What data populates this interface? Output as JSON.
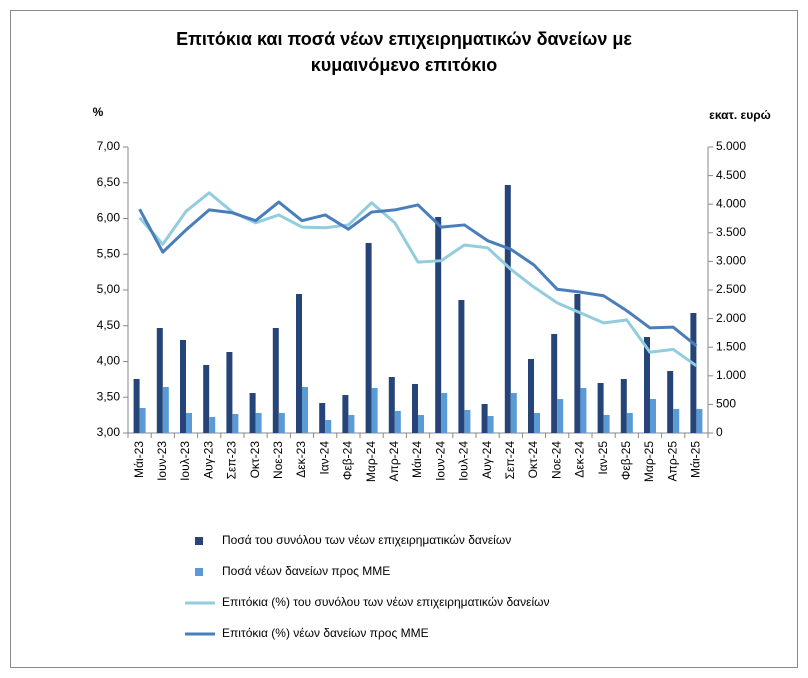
{
  "chart_data": {
    "type": "bar",
    "title": [
      "Επιτόκια και ποσά νέων επιχειρηματικών δανείων με",
      "κυμαινόμενο επιτόκιο"
    ],
    "y_label": "%",
    "y2_label": "εκατ. ευρώ",
    "categories": [
      "Μάι-23",
      "Ιουν-23",
      "Ιουλ-23",
      "Αυγ-23",
      "Σεπ-23",
      "Οκτ-23",
      "Νοε-23",
      "Δεκ-23",
      "Ιαν-24",
      "Φεβ-24",
      "Μαρ-24",
      "Απρ-24",
      "Μάι-24",
      "Ιουν-24",
      "Ιουλ-24",
      "Αυγ-24",
      "Σεπ-24",
      "Οκτ-24",
      "Νοε-24",
      "Δεκ-24",
      "Ιαν-25",
      "Φεβ-25",
      "Μαρ-25",
      "Απρ-25",
      "Μάι-25"
    ],
    "series": [
      {
        "name": "Ποσά του συνόλου των νέων επιχειρηματικών δανείων",
        "type": "bar",
        "axis": "y2",
        "color": "#264478",
        "values": [
          944,
          1836,
          1626,
          1189,
          1416,
          699,
          1836,
          2430,
          524,
          664,
          3322,
          979,
          857,
          3776,
          2325,
          507,
          4336,
          1294,
          1731,
          2430,
          874,
          944,
          1678,
          1084,
          2098
        ]
      },
      {
        "name": "Ποσά νέων δανείων προς ΜΜΕ",
        "type": "bar",
        "axis": "y2",
        "color": "#5b9bd5",
        "values": [
          437,
          804,
          350,
          280,
          332,
          350,
          350,
          804,
          227,
          315,
          787,
          385,
          315,
          699,
          402,
          297,
          699,
          350,
          594,
          787,
          315,
          350,
          594,
          420,
          420
        ]
      },
      {
        "name": "Επιτόκια (%) του συνόλου των νέων επιχειρηματικών δανείων",
        "type": "line",
        "color": "#93cddd",
        "values": [
          6.01,
          5.64,
          6.1,
          6.36,
          6.09,
          5.94,
          6.05,
          5.88,
          5.87,
          5.91,
          6.22,
          5.94,
          5.39,
          5.41,
          5.63,
          5.59,
          5.29,
          5.04,
          4.82,
          4.68,
          4.54,
          4.58,
          4.13,
          4.17,
          3.94
        ]
      },
      {
        "name": "Επιτόκια (%) νέων δανείων προς ΜΜΕ",
        "type": "line",
        "color": "#4a7ebb",
        "values": [
          6.13,
          5.53,
          5.84,
          6.12,
          6.08,
          5.97,
          6.23,
          5.97,
          6.05,
          5.85,
          6.09,
          6.12,
          6.19,
          5.88,
          5.91,
          5.69,
          5.57,
          5.35,
          5.01,
          4.97,
          4.92,
          4.71,
          4.47,
          4.48,
          4.22
        ]
      }
    ],
    "ylim": [
      3,
      7
    ],
    "yticks": [
      {
        "value": 3,
        "label": "3,00"
      },
      {
        "value": 3.5,
        "label": "3,50"
      },
      {
        "value": 4,
        "label": "4,00"
      },
      {
        "value": 4.5,
        "label": "4,50"
      },
      {
        "value": 5,
        "label": "5,00"
      },
      {
        "value": 5.5,
        "label": "5,50"
      },
      {
        "value": 6,
        "label": "6,00"
      },
      {
        "value": 6.5,
        "label": "6,50"
      },
      {
        "value": 7,
        "label": "7,00"
      }
    ],
    "y2lim": [
      0,
      5000
    ],
    "y2ticks": [
      0,
      500,
      {
        "value": 1000,
        "label": "1.000"
      },
      {
        "value": 1500,
        "label": "1.500"
      },
      {
        "value": 2000,
        "label": "2.000"
      },
      {
        "value": 2500,
        "label": "2.500"
      },
      {
        "value": 3000,
        "label": "3.000"
      },
      {
        "value": 3500,
        "label": "3.500"
      },
      {
        "value": 4000,
        "label": "4.000"
      },
      {
        "value": 4500,
        "label": "4.500"
      },
      {
        "value": 5000,
        "label": "5.000"
      }
    ],
    "grid": false,
    "legend": "bottom"
  }
}
